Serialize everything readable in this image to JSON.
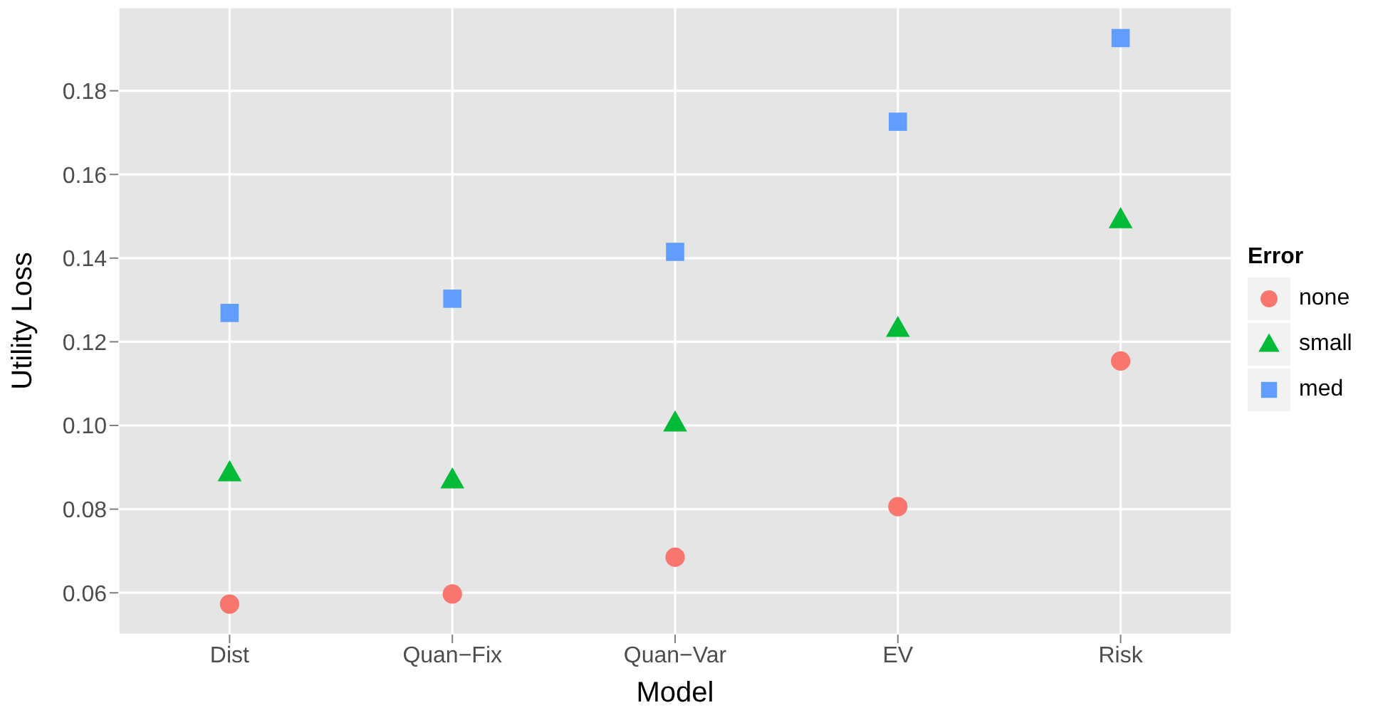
{
  "chart_data": {
    "type": "scatter",
    "xlabel": "Model",
    "ylabel": "Utility Loss",
    "legend_title": "Error",
    "legend": "right",
    "grid": true,
    "categories": [
      "Dist",
      "Quan−Fix",
      "Quan−Var",
      "EV",
      "Risk"
    ],
    "ylim": [
      0.05,
      0.2
    ],
    "yticks": [
      0.06,
      0.08,
      {
        "value": 0.1,
        "label": "0.10"
      },
      0.12,
      0.14,
      0.16,
      0.18
    ],
    "series": [
      {
        "name": "none",
        "color": "#f8766d",
        "marker": "circle",
        "values": [
          0.0573,
          0.0597,
          0.0685,
          0.0806,
          0.1154
        ]
      },
      {
        "name": "small",
        "color": "#00ba38",
        "marker": "triangle",
        "values": [
          0.0887,
          0.087,
          0.1006,
          0.1232,
          0.1492
        ]
      },
      {
        "name": "med",
        "color": "#619cff",
        "marker": "square",
        "values": [
          0.1269,
          0.1303,
          0.1415,
          0.1726,
          0.1926
        ]
      }
    ]
  }
}
